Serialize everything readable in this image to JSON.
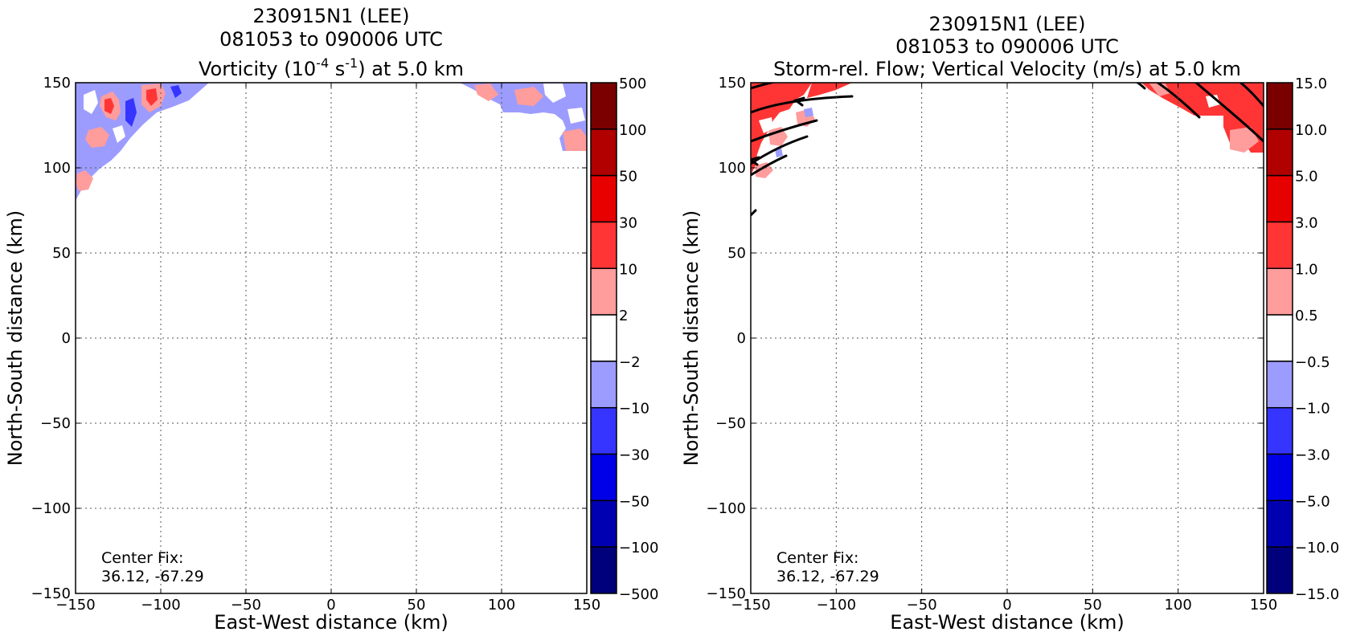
{
  "figure": {
    "panels": [
      {
        "title_lines": [
          "230915N1 (LEE)",
          "081053 to 090006 UTC"
        ],
        "title_main_pre": "Vorticity (10",
        "title_sup1": "-4",
        "title_mid": " s",
        "title_sup2": "-1",
        "title_post": ") at 5.0 km",
        "xlabel": "East-West distance (km)",
        "ylabel": "North-South distance (km)",
        "annotation_lines": [
          "Center Fix:",
          "36.12, -67.29"
        ],
        "colorbar_labels": [
          "500",
          "100",
          "50",
          "30",
          "10",
          "2",
          "−2",
          "−10",
          "−30",
          "−50",
          "−100",
          "−500"
        ]
      },
      {
        "title_lines": [
          "230915N1 (LEE)",
          "081053 to 090006 UTC",
          "Storm-rel. Flow; Vertical Velocity (m/s) at 5.0 km"
        ],
        "xlabel": "East-West distance (km)",
        "ylabel": "North-South distance (km)",
        "annotation_lines": [
          "Center Fix:",
          "36.12, -67.29"
        ],
        "colorbar_labels": [
          "15.0",
          "10.0",
          "5.0",
          "3.0",
          "1.0",
          "0.5",
          "−0.5",
          "−1.0",
          "−3.0",
          "−5.0",
          "−10.0",
          "−15.0"
        ]
      }
    ],
    "colorbar_colors": [
      "#7a0000",
      "#b00000",
      "#e60000",
      "#ff3535",
      "#ff9c9c",
      "#ffffff",
      "#9c9cff",
      "#3535ff",
      "#0000e6",
      "#0000b0",
      "#00007a"
    ]
  },
  "chart_data": [
    {
      "type": "heatmap",
      "field": "vorticity",
      "units": "10^-4 s^-1",
      "level_km": 5.0,
      "x_ticks": [
        "−150",
        "−100",
        "−50",
        "0",
        "50",
        "100",
        "150"
      ],
      "y_ticks": [
        "150",
        "100",
        "50",
        "0",
        "−50",
        "−100",
        "−150"
      ],
      "xlim": [
        -150,
        150
      ],
      "ylim": [
        -150,
        150
      ],
      "grid": true,
      "colorbar_levels": [
        -500,
        -100,
        -50,
        -30,
        -10,
        -2,
        2,
        10,
        30,
        50,
        100,
        500
      ],
      "data_regions": [
        {
          "description": "northwest corner band",
          "x_range": [
            -150,
            -75
          ],
          "y_range": [
            75,
            150
          ],
          "values": "mixed -10 to 30"
        },
        {
          "description": "northeast corner patch",
          "x_range": [
            75,
            150
          ],
          "y_range": [
            110,
            150
          ],
          "values": "mixed -10 to 10"
        }
      ]
    },
    {
      "type": "heatmap",
      "field": "vertical velocity",
      "units": "m/s",
      "level_km": 5.0,
      "overlay": "storm-relative flow streamlines",
      "x_ticks": [
        "−150",
        "−100",
        "−50",
        "0",
        "50",
        "100",
        "150"
      ],
      "y_ticks": [
        "150",
        "100",
        "50",
        "0",
        "−50",
        "−100",
        "−150"
      ],
      "xlim": [
        -150,
        150
      ],
      "ylim": [
        -150,
        150
      ],
      "grid": true,
      "colorbar_levels": [
        -15.0,
        -10.0,
        -5.0,
        -3.0,
        -1.0,
        -0.5,
        0.5,
        1.0,
        3.0,
        5.0,
        10.0,
        15.0
      ],
      "data_regions": [
        {
          "description": "northwest corner band",
          "x_range": [
            -150,
            -75
          ],
          "y_range": [
            90,
            150
          ],
          "values": "mostly 1.0 to 3.0"
        },
        {
          "description": "northeast corner patch",
          "x_range": [
            80,
            150
          ],
          "y_range": [
            110,
            150
          ],
          "values": "mostly 1.0 to 3.0"
        }
      ]
    }
  ]
}
